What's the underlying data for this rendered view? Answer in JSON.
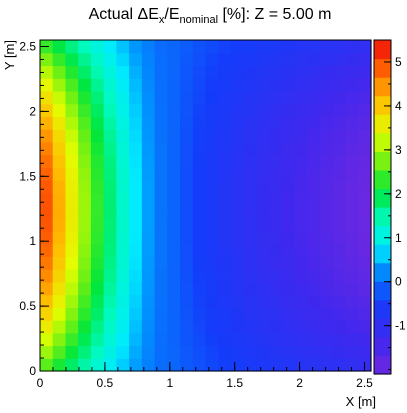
{
  "chart_data": {
    "type": "heatmap",
    "title": {
      "prefix": "Actual ΔE",
      "sub1": "x",
      "mid": "/E",
      "sub2": "nominal",
      "suffix": " [%]:   Z = 5.00 m"
    },
    "xlabel": "X [m]",
    "ylabel": "Y [m]",
    "xlim": [
      0,
      2.55
    ],
    "ylim": [
      0,
      2.55
    ],
    "zlim": [
      -2.1,
      5.5
    ],
    "x_ticks": [
      0,
      0.5,
      1,
      1.5,
      2,
      2.5
    ],
    "x_tick_labels": [
      "0",
      "0.5",
      "1",
      "1.5",
      "2",
      "2.5"
    ],
    "y_ticks": [
      0,
      0.5,
      1,
      1.5,
      2,
      2.5
    ],
    "y_tick_labels": [
      "0",
      "0.5",
      "1",
      "1.5",
      "2",
      "2.5"
    ],
    "z_ticks": [
      -1,
      0,
      1,
      2,
      3,
      4,
      5
    ],
    "z_tick_labels": [
      "-1",
      "0",
      "1",
      "2",
      "3",
      "4",
      "5"
    ],
    "grid": false,
    "palette": "ROOT rainbow (violet → blue → cyan → green → yellow → orange → red)",
    "grid_cells": {
      "nx": 26,
      "ny": 26,
      "cell_size": 0.1
    },
    "field_description": {
      "max_value": 5.4,
      "max_location": [
        0,
        1.25
      ],
      "min_value": -2.0,
      "min_location": [
        2.55,
        1.25
      ],
      "zero_contour_x": 1.0
    }
  }
}
